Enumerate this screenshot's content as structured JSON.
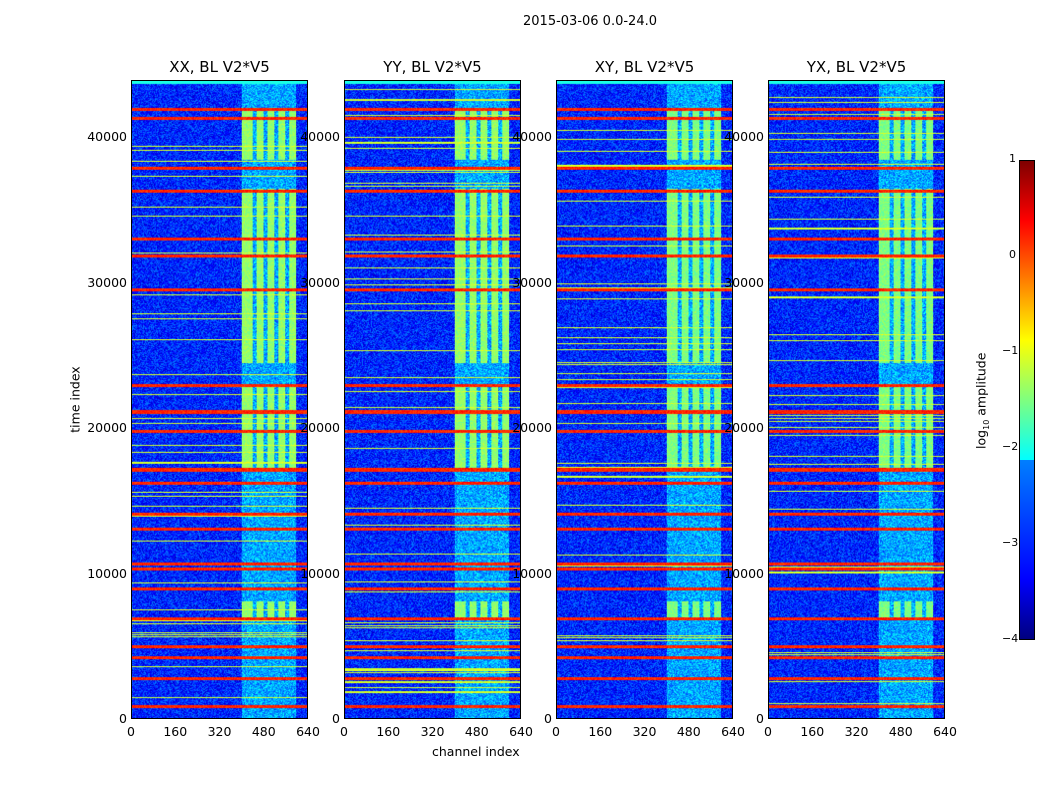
{
  "chart_data": {
    "type": "heatmap",
    "title": "2015-03-06 0.0-24.0",
    "xlabel": "channel index",
    "ylabel": "time index",
    "xlim": [
      0,
      640
    ],
    "ylim": [
      0,
      43920
    ],
    "xticks": [
      "0",
      "160",
      "320",
      "480",
      "640"
    ],
    "yticks": [
      "0",
      "10000",
      "20000",
      "30000",
      "40000"
    ],
    "panels": [
      {
        "title": "XX, BL V2*V5"
      },
      {
        "title": "YY, BL V2*V5"
      },
      {
        "title": "XY, BL V2*V5"
      },
      {
        "title": "YX, BL V2*V5"
      }
    ],
    "colorbar": {
      "label_prefix": "log",
      "label_sub": "10",
      "label_suffix": " amplitude",
      "range": [
        -4,
        1
      ],
      "ticks": [
        "1",
        "0",
        "−1",
        "−2",
        "−3",
        "−4"
      ],
      "colormap": "jet"
    },
    "features": {
      "background_log_amplitude": -3.2,
      "rfi_time_rows": [
        760,
        2680,
        4120,
        4880,
        6800,
        8870,
        10240,
        10580,
        12990,
        14020,
        16150,
        17110,
        19730,
        21100,
        22950,
        29550,
        31890,
        33060,
        36360,
        37940,
        41370,
        41990
      ],
      "rfi_log_amplitude": 0.2,
      "bright_channel_range": [
        400,
        600
      ],
      "bright_time_ranges": [
        [
          6900,
          8000
        ],
        [
          17000,
          23000
        ],
        [
          24500,
          36500
        ],
        [
          38500,
          42000
        ]
      ],
      "bright_log_amplitude": -1.4
    }
  }
}
